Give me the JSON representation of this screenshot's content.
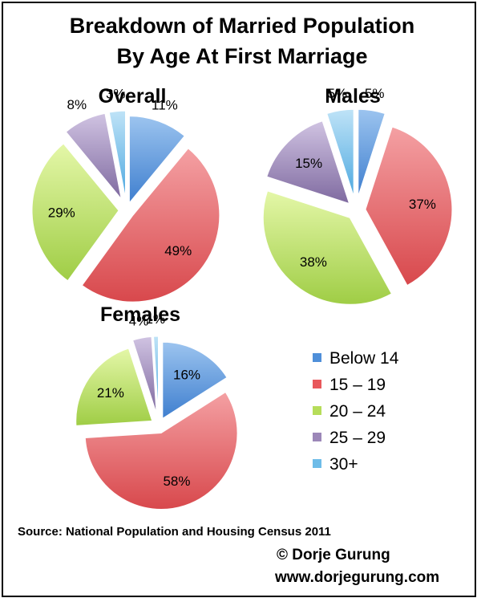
{
  "title_line1": "Breakdown of Married Population",
  "title_line2": "By Age At First Marriage",
  "source": "Source: National Population and Housing Census 2011",
  "credit_line1": "© Dorje Gurung",
  "credit_line2": "www.dorjegurung.com",
  "colors": {
    "Below 14": "#4f8fd9",
    "15 – 19": "#e8585c",
    "20 – 24": "#b6dd5a",
    "25 – 29": "#9c87b8",
    "30+": "#6ebce8"
  },
  "chart_data": [
    {
      "type": "pie",
      "title": "Overall",
      "categories": [
        "Below 14",
        "15 – 19",
        "20 – 24",
        "25 – 29",
        "30+"
      ],
      "values": [
        11,
        49,
        29,
        8,
        3
      ],
      "labels": [
        "11%",
        "49%",
        "29%",
        "8%",
        "3%"
      ],
      "exploded": true
    },
    {
      "type": "pie",
      "title": "Males",
      "categories": [
        "Below 14",
        "15 – 19",
        "20 – 24",
        "25 – 29",
        "30+"
      ],
      "values": [
        5,
        37,
        38,
        15,
        5
      ],
      "labels": [
        "5%",
        "37%",
        "38%",
        "15%",
        "5%"
      ],
      "exploded": true
    },
    {
      "type": "pie",
      "title": "Females",
      "categories": [
        "Below 14",
        "15 – 19",
        "20 – 24",
        "25 – 29",
        "30+"
      ],
      "values": [
        16,
        58,
        21,
        4,
        1
      ],
      "labels": [
        "16%",
        "58%",
        "21%",
        "4%",
        "1%"
      ],
      "exploded": true,
      "legend": {
        "position": "right",
        "entries": [
          "Below 14",
          "15 – 19",
          "20 – 24",
          "25 – 29",
          "30+"
        ]
      }
    }
  ]
}
